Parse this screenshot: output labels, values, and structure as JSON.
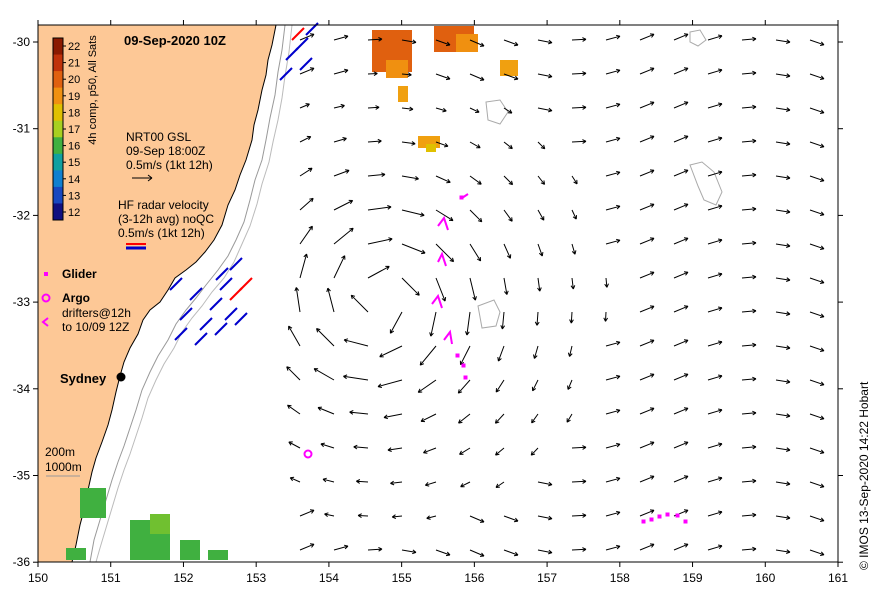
{
  "title": "09-Sep-2020 10Z",
  "credit": "© IMOS 13-Sep-2020 14:22 Hobart",
  "colorbar": {
    "label": "4h comp, p50, All Sats",
    "ticks": [
      "22",
      "21",
      "20",
      "19",
      "18",
      "17",
      "16",
      "15",
      "14",
      "13",
      "12"
    ],
    "colors": [
      "#8b1a00",
      "#c0320a",
      "#e0600f",
      "#f09010",
      "#e0c000",
      "#a8d020",
      "#40b040",
      "#10a0a0",
      "#1080d0",
      "#1848c0",
      "#101080"
    ]
  },
  "legend": {
    "nrt_title": "NRT00 GSL",
    "nrt_time": "09-Sep 18:00Z",
    "nrt_scale": "0.5m/s (1kt 12h)",
    "hf_title": "HF radar velocity",
    "hf_avg": "(3-12h avg) noQC",
    "hf_scale": "0.5m/s (1kt 12h)",
    "glider": "Glider",
    "argo": "Argo",
    "drifters_1": "drifters@12h",
    "drifters_2": "to 10/09 12Z"
  },
  "places": {
    "sydney": "Sydney",
    "depth_200": "200m",
    "depth_1000": "1000m"
  },
  "axes": {
    "lon_ticks": [
      "150",
      "151",
      "152",
      "153",
      "154",
      "155",
      "156",
      "157",
      "158",
      "159",
      "160",
      "161"
    ],
    "lat_ticks": [
      "-30",
      "-31",
      "-32",
      "-33",
      "-34",
      "-35",
      "-36"
    ]
  },
  "colors": {
    "land": "#fdc896",
    "glider": "#ff00ff",
    "hf_radar": "#0000cc",
    "hf_radar_alt": "#ff0000",
    "depth_contour": "#999999"
  }
}
